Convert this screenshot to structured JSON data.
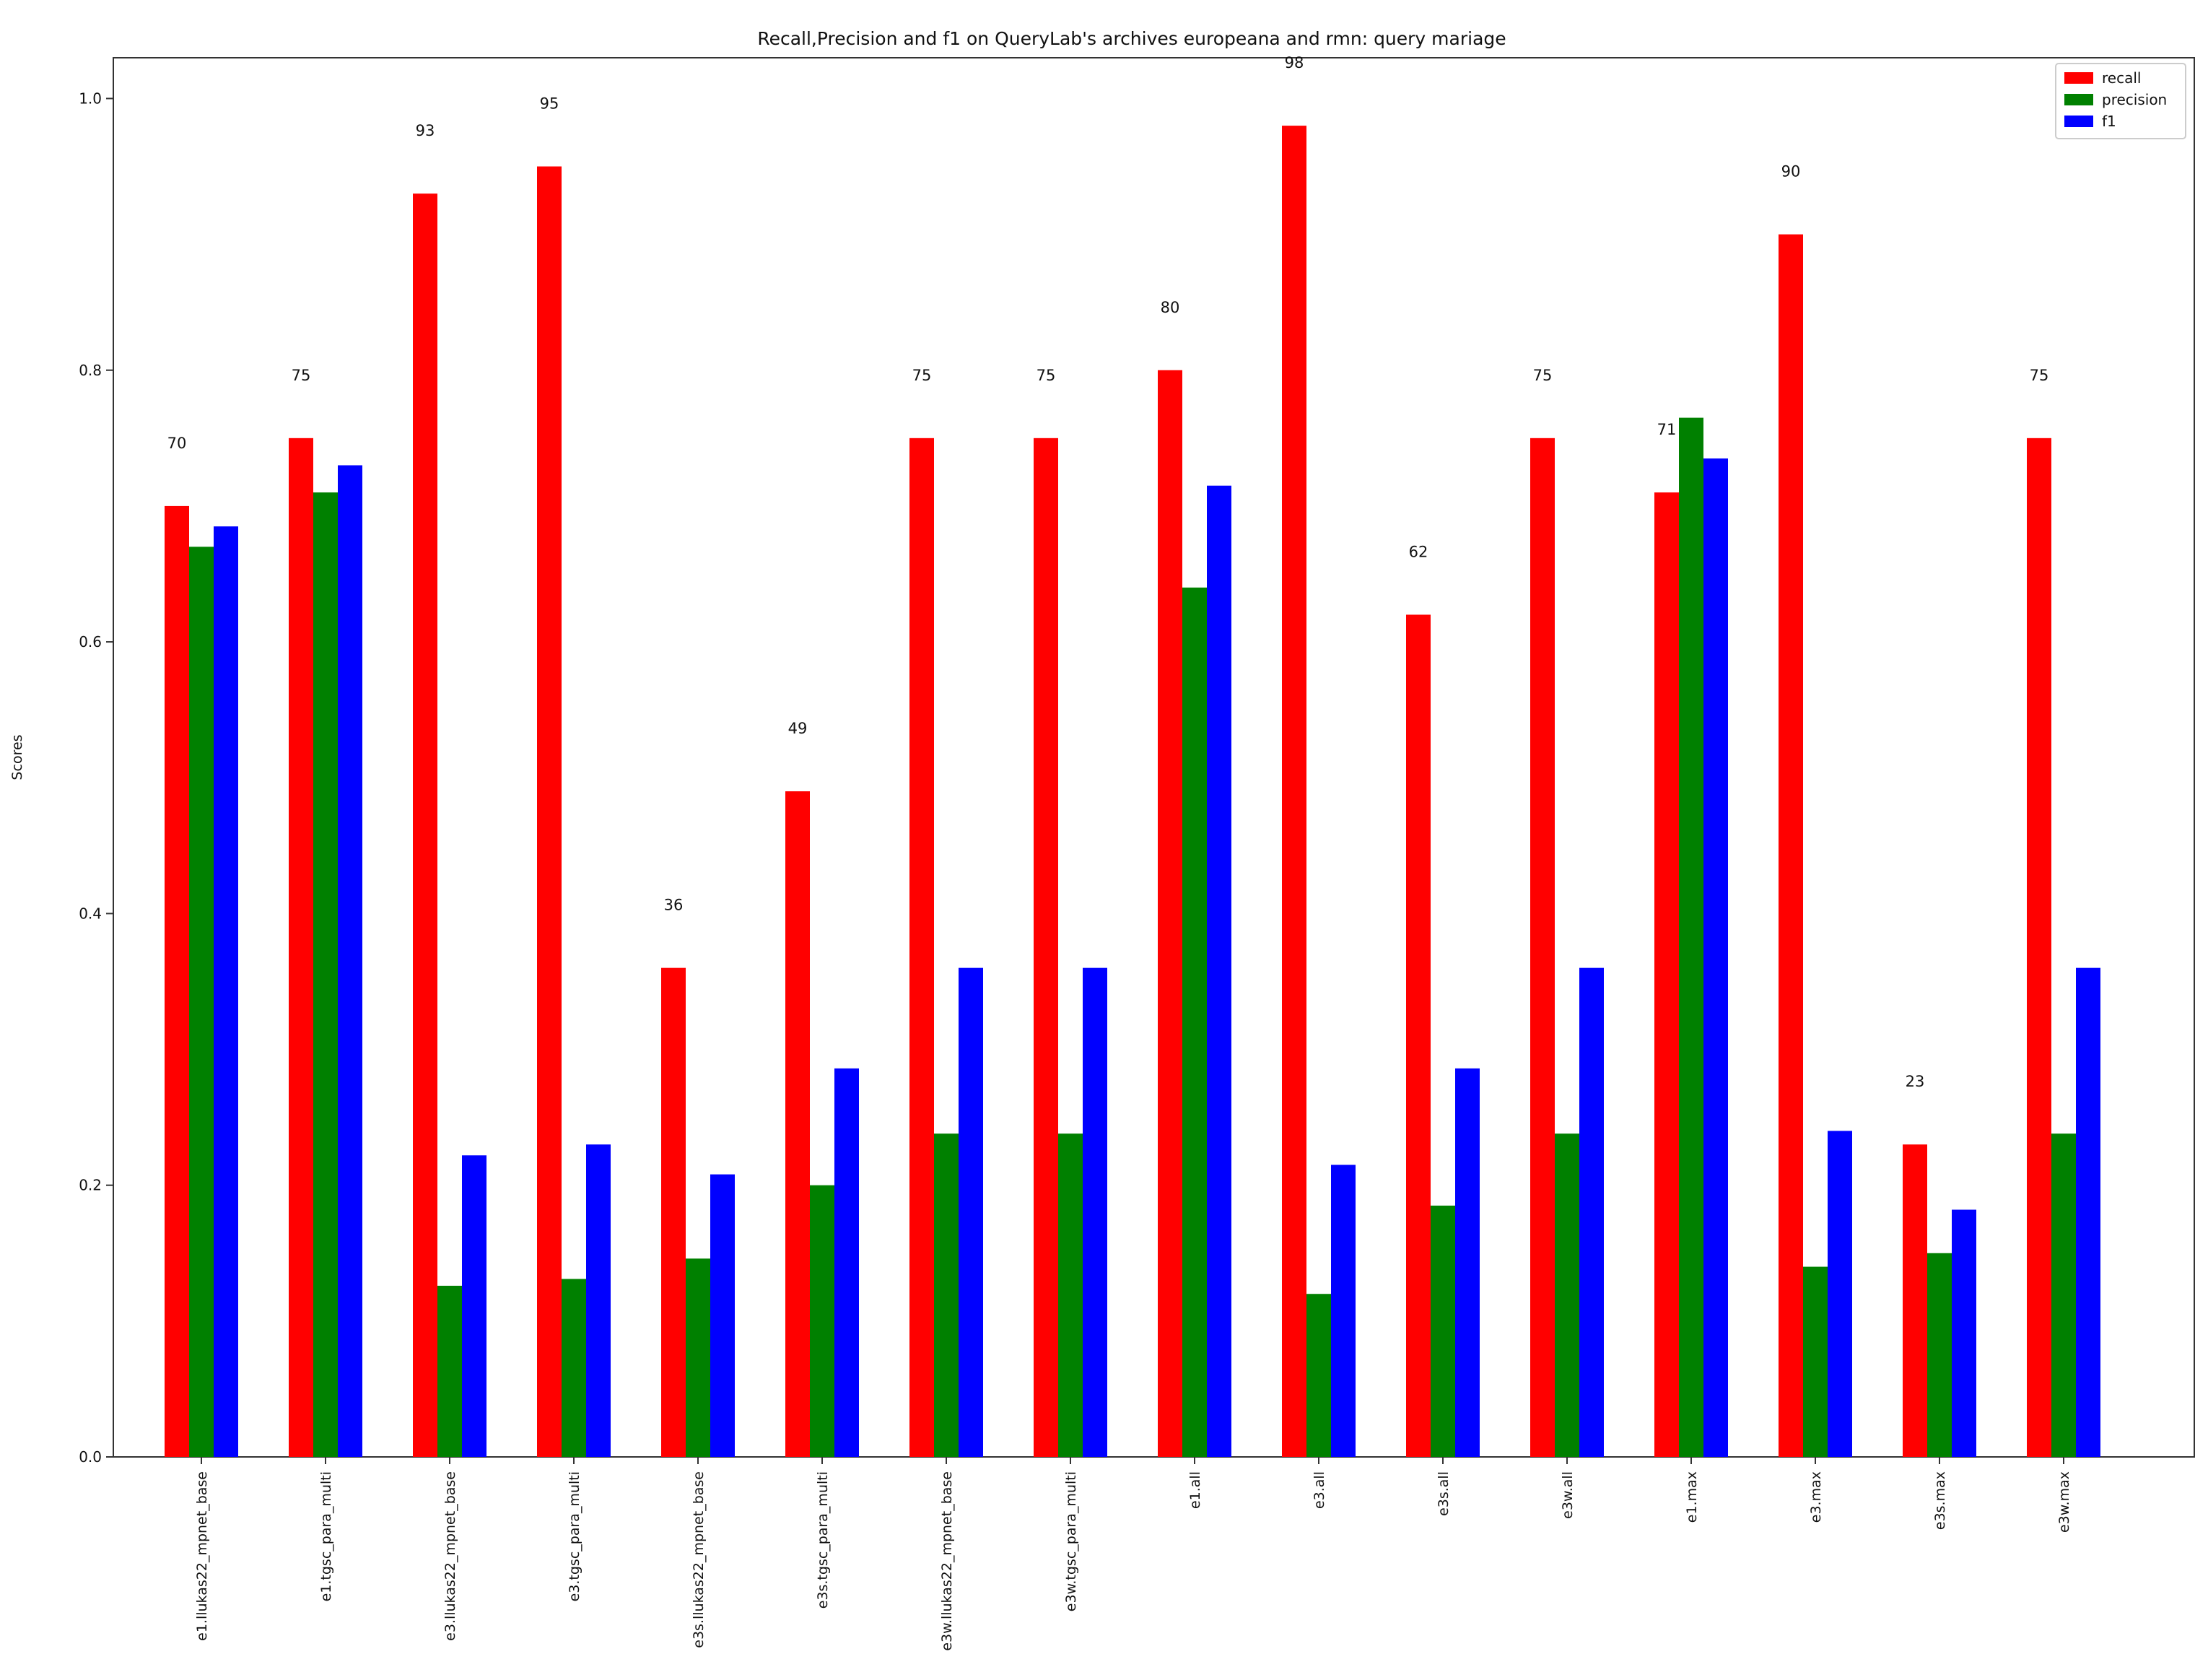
{
  "chart_data": {
    "type": "bar",
    "title": "Recall,Precision and f1 on QueryLab's archives europeana and rmn: query mariage",
    "xlabel": "",
    "ylabel": "Scores",
    "ylim": [
      0,
      1.03
    ],
    "y_ticks": [
      "0.0",
      "0.2",
      "0.4",
      "0.6",
      "0.8",
      "1.0"
    ],
    "grid": false,
    "legend_position": "top-right",
    "categories": [
      "e1.llukas22_mpnet_base",
      "e1.tgsc_para_multi",
      "e3.llukas22_mpnet_base",
      "e3.tgsc_para_multi",
      "e3s.llukas22_mpnet_base",
      "e3s.tgsc_para_multi",
      "e3w.llukas22_mpnet_base",
      "e3w.tgsc_para_multi",
      "e1.all",
      "e3.all",
      "e3s.all",
      "e3w.all",
      "e1.max",
      "e3.max",
      "e3s.max",
      "e3w.max"
    ],
    "series": [
      {
        "name": "recall",
        "color": "#ff0000",
        "values": [
          0.7,
          0.75,
          0.93,
          0.95,
          0.36,
          0.49,
          0.75,
          0.75,
          0.8,
          0.98,
          0.62,
          0.75,
          0.71,
          0.9,
          0.23,
          0.75
        ]
      },
      {
        "name": "precision",
        "color": "#008000",
        "values": [
          0.67,
          0.71,
          0.126,
          0.131,
          0.146,
          0.2,
          0.238,
          0.238,
          0.64,
          0.12,
          0.185,
          0.238,
          0.765,
          0.14,
          0.15,
          0.238
        ]
      },
      {
        "name": "f1",
        "color": "#0000ff",
        "values": [
          0.685,
          0.73,
          0.222,
          0.23,
          0.208,
          0.286,
          0.36,
          0.36,
          0.715,
          0.215,
          0.286,
          0.36,
          0.735,
          0.24,
          0.182,
          0.36
        ]
      }
    ],
    "annotations": [
      "70",
      "75",
      "93",
      "95",
      "36",
      "49",
      "75",
      "75",
      "80",
      "98",
      "62",
      "75",
      "71",
      "90",
      "23",
      "75"
    ]
  }
}
